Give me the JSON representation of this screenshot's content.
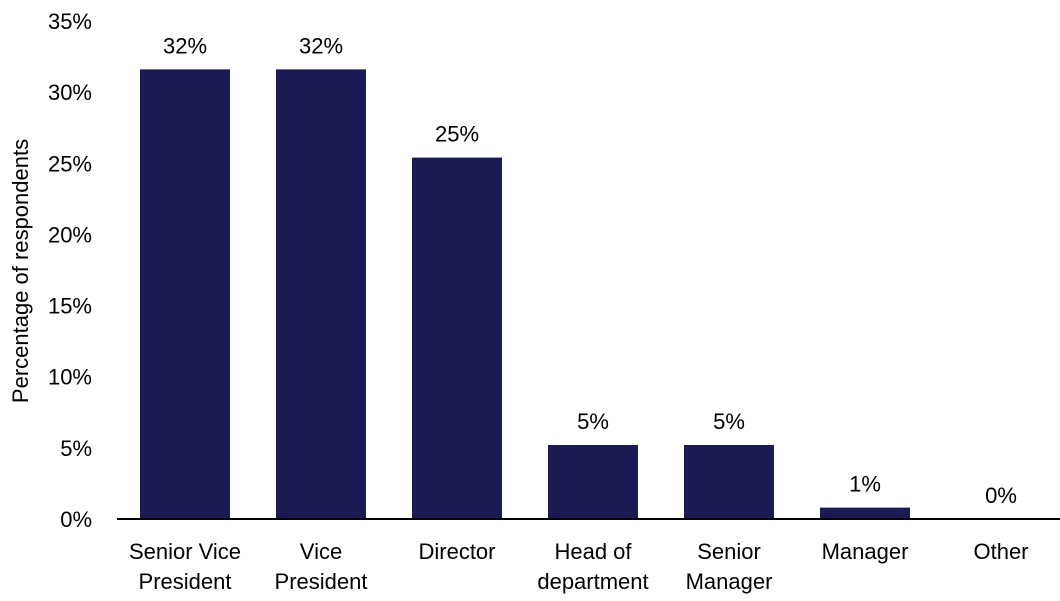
{
  "chart_data": {
    "type": "bar",
    "title": "",
    "xlabel": "",
    "ylabel": "Percentage of respondents",
    "ylim": [
      0,
      35
    ],
    "yticks": [
      "0%",
      "5%",
      "10%",
      "15%",
      "20%",
      "25%",
      "30%",
      "35%"
    ],
    "ytick_values": [
      0,
      5,
      10,
      15,
      20,
      25,
      30,
      35
    ],
    "grid": false,
    "categories": [
      [
        "Senior Vice",
        "President"
      ],
      [
        "Vice",
        "President"
      ],
      [
        "Director"
      ],
      [
        "Head of",
        "department"
      ],
      [
        "Senior",
        "Manager"
      ],
      [
        "Manager"
      ],
      [
        "Other"
      ]
    ],
    "values": [
      31.6,
      31.6,
      25.4,
      5.2,
      5.2,
      0.8,
      0.0
    ],
    "data_labels": [
      "32%",
      "32%",
      "25%",
      "5%",
      "5%",
      "1%",
      "0%"
    ],
    "bar_color": "#1c1a52"
  }
}
